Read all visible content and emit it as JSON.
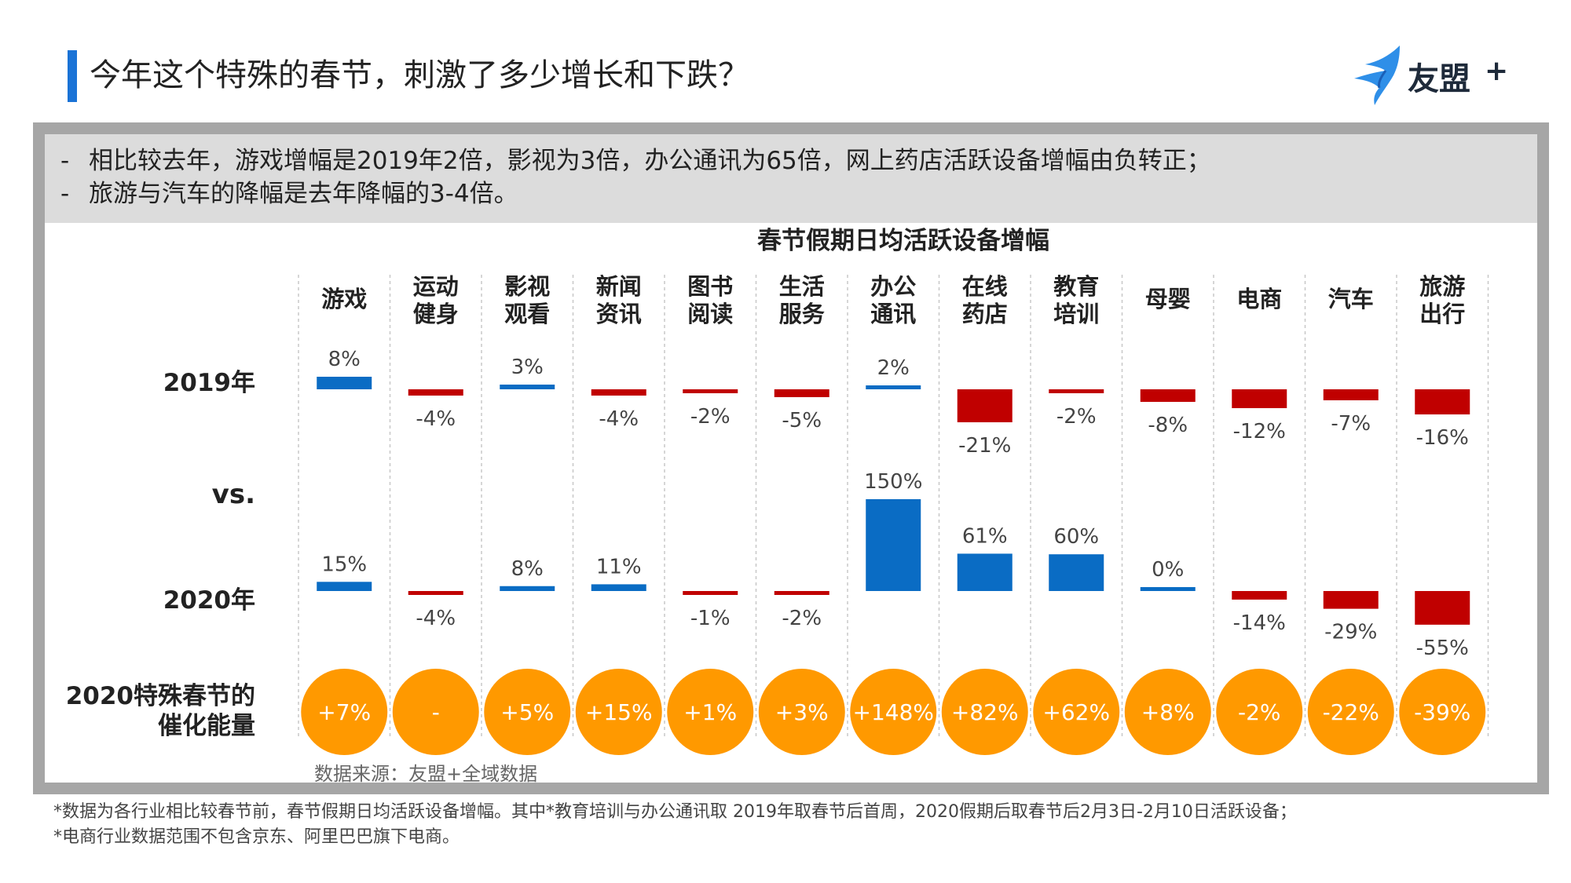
{
  "header": {
    "title": "今年这个特殊的春节，刺激了多少增长和下跌？",
    "logo_text": "友盟",
    "logo_plus": "+"
  },
  "summary": {
    "lines": [
      "相比较去年，游戏增幅是2019年2倍，影视为3倍，办公通讯为65倍，网上药店活跃设备增幅由负转正；",
      "旅游与汽车的降幅是去年降幅的3-4倍。"
    ]
  },
  "source": "数据来源：友盟+全域数据",
  "footnotes": [
    "*数据为各行业相比较春节前，春节假期日均活跃设备增幅。其中*教育培训与办公通讯取 2019年取春节后首周，2020假期后取春节后2月3日-2月10日活跃设备；",
    "*电商行业数据范围不包含京东、阿里巴巴旗下电商。"
  ],
  "colors": {
    "positive": "#0a6cc4",
    "negative": "#c00000",
    "circle": "#ff9900",
    "accent": "#1a73d6"
  },
  "chart_data": {
    "type": "bar",
    "title": "春节假期日均活跃设备增幅",
    "categories": [
      [
        "游戏"
      ],
      [
        "运动",
        "健身"
      ],
      [
        "影视",
        "观看"
      ],
      [
        "新闻",
        "资讯"
      ],
      [
        "图书",
        "阅读"
      ],
      [
        "生活",
        "服务"
      ],
      [
        "办公",
        "通讯"
      ],
      [
        "在线",
        "药店"
      ],
      [
        "教育",
        "培训"
      ],
      [
        "母婴"
      ],
      [
        "电商"
      ],
      [
        "汽车"
      ],
      [
        "旅游",
        "出行"
      ]
    ],
    "row_labels": {
      "y2019": "2019年",
      "vs": "vs.",
      "y2020": "2020年",
      "catalyst": [
        "2020特殊春节的",
        "催化能量"
      ]
    },
    "series": [
      {
        "name": "2019年",
        "values": [
          8,
          -4,
          3,
          -4,
          -2,
          -5,
          2,
          -21,
          -2,
          -8,
          -12,
          -7,
          -16
        ],
        "labels": [
          "8%",
          "-4%",
          "3%",
          "-4%",
          "-2%",
          "-5%",
          "2%",
          "-21%",
          "-2%",
          "-8%",
          "-12%",
          "-7%",
          "-16%"
        ]
      },
      {
        "name": "2020年",
        "values": [
          15,
          -4,
          8,
          11,
          -1,
          -2,
          150,
          61,
          60,
          0,
          -14,
          -29,
          -55
        ],
        "labels": [
          "15%",
          "-4%",
          "8%",
          "11%",
          "-1%",
          "-2%",
          "150%",
          "61%",
          "60%",
          "0%",
          "-14%",
          "-29%",
          "-55%"
        ]
      }
    ],
    "catalyst": [
      "+7%",
      "-",
      "+5%",
      "+15%",
      "+1%",
      "+3%",
      "+148%",
      "+82%",
      "+62%",
      "+8%",
      "-2%",
      "-22%",
      "-39%"
    ]
  }
}
